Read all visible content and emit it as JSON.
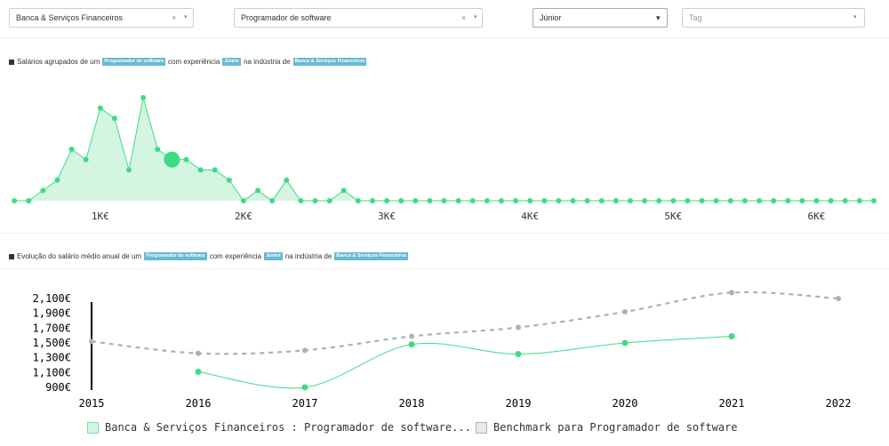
{
  "filters": {
    "industry": {
      "value": "Banca & Serviços Financeiros",
      "clear": "×",
      "caret": "▾"
    },
    "role": {
      "value": "Programador de software",
      "clear": "×",
      "caret": "▾"
    },
    "experience": {
      "value": "Júnior",
      "caret": "▾"
    },
    "tag": {
      "placeholder": "Tag",
      "caret": "▾"
    }
  },
  "section1": {
    "prefix": "Salários agrupados de um",
    "tag_role": "Programador de software",
    "middle": "com experiência",
    "tag_exp": "Júnior",
    "middle2": "na indústria de",
    "tag_industry": "Banca & Serviços Financeiros"
  },
  "section2": {
    "prefix": "Evolução do salário médio anual de um",
    "tag_role": "Programador de software",
    "middle": "com experiência",
    "tag_exp": "Júnior",
    "middle2": "na indústria de",
    "tag_industry": "Banca & Serviços Financeiros"
  },
  "legend": {
    "series1": "Banca & Serviços Financeiros : Programador de software...",
    "series2": "Benchmark para Programador de software"
  },
  "colors": {
    "accent": "#3ddc84",
    "area_fill": "#d4f5e2",
    "benchmark": "#a9b3b0",
    "tag_bg": "#68b9d3"
  },
  "chart_data": [
    {
      "type": "area",
      "title": "",
      "xlabel": "",
      "ylabel": "",
      "x": [
        400,
        500,
        600,
        700,
        800,
        900,
        1000,
        1100,
        1200,
        1300,
        1400,
        1500,
        1600,
        1700,
        1800,
        1900,
        2000,
        2100,
        2200,
        2300,
        2400,
        2500,
        2600,
        2700,
        2800,
        2900,
        3000,
        3100,
        3200,
        3300,
        3400,
        3500,
        3600,
        3700,
        3800,
        3900,
        4000,
        4100,
        4200,
        4300,
        4400,
        4500,
        4600,
        4700,
        4800,
        4900,
        5000,
        5100,
        5200,
        5300,
        5400,
        5500,
        5600,
        5700,
        5800,
        5900,
        6000,
        6100,
        6200,
        6300,
        6400
      ],
      "values": [
        0,
        0,
        1,
        2,
        5,
        4,
        9,
        8,
        3,
        10,
        5,
        4,
        4,
        3,
        3,
        2,
        0,
        1,
        0,
        2,
        0,
        0,
        0,
        1,
        0,
        0,
        0,
        0,
        0,
        0,
        0,
        0,
        0,
        0,
        0,
        0,
        0,
        0,
        0,
        0,
        0,
        0,
        0,
        0,
        0,
        0,
        0,
        0,
        0,
        0,
        0,
        0,
        0,
        0,
        0,
        0,
        0,
        0,
        0,
        0,
        0
      ],
      "highlight_x": 1500,
      "x_ticks": [
        1000,
        2000,
        3000,
        4000,
        5000,
        6000
      ],
      "x_tick_labels": [
        "1K€",
        "2K€",
        "3K€",
        "4K€",
        "5K€",
        "6K€"
      ],
      "xlim": [
        300,
        6450
      ]
    },
    {
      "type": "line",
      "title": "",
      "xlabel": "",
      "ylabel": "",
      "categories": [
        "2015",
        "2016",
        "2017",
        "2018",
        "2019",
        "2020",
        "2021",
        "2022"
      ],
      "series": [
        {
          "name": "Banca & Serviços Financeiros : Programador de software...",
          "values": [
            null,
            1110,
            900,
            1480,
            1350,
            1500,
            1590,
            null
          ]
        },
        {
          "name": "Benchmark para Programador de software",
          "values": [
            1520,
            1360,
            1400,
            1590,
            1710,
            1920,
            2180,
            2100
          ]
        }
      ],
      "y_ticks": [
        900,
        1100,
        1300,
        1500,
        1700,
        1900,
        2100
      ],
      "y_tick_labels": [
        "900€",
        "1,100€",
        "1,300€",
        "1,500€",
        "1,700€",
        "1,900€",
        "2,100€"
      ],
      "ylim": [
        750,
        2250
      ],
      "legend": "bottom"
    }
  ]
}
